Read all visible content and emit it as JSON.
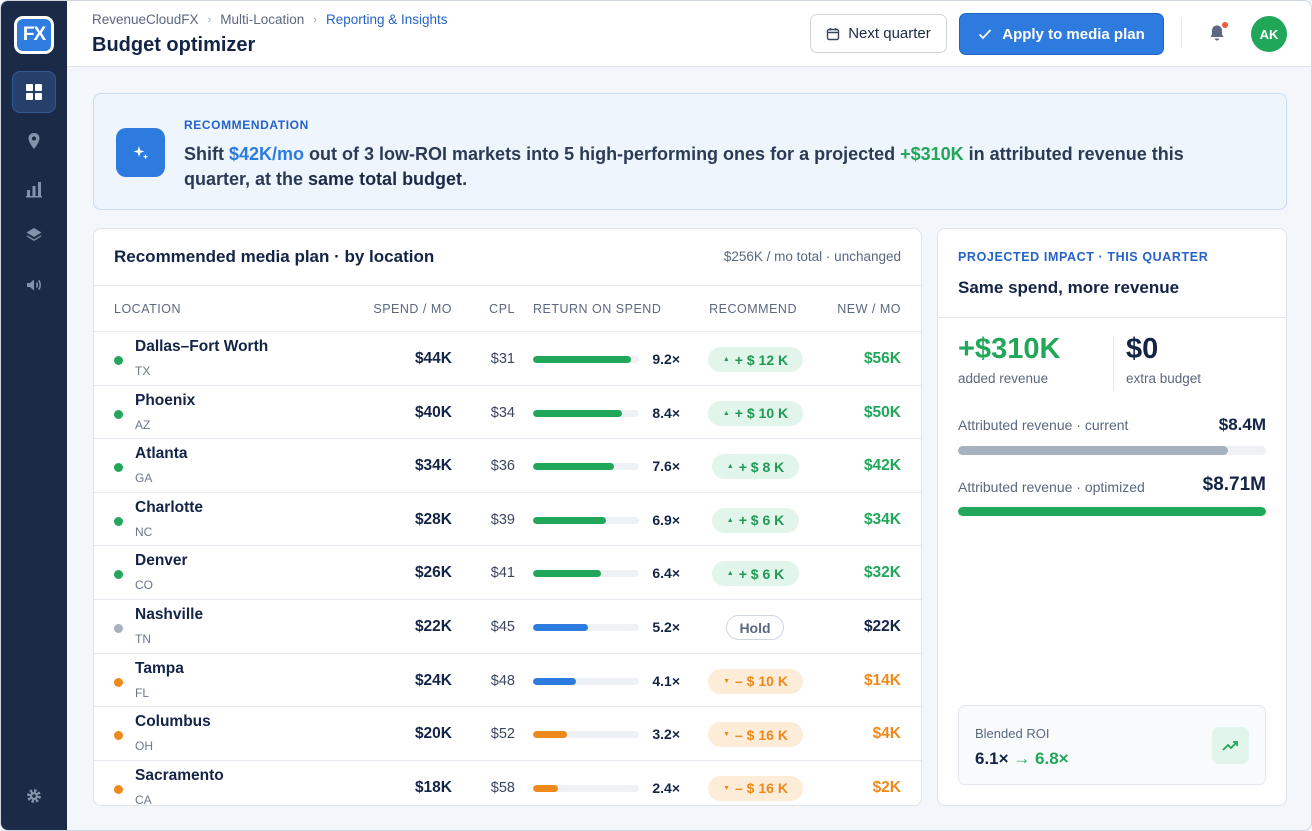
{
  "app": {
    "logo_text": "FX",
    "breadcrumb": [
      "RevenueCloudFX",
      "Multi-Location",
      "Reporting & Insights"
    ],
    "page_title": "Budget optimizer",
    "next_quarter_label": "Next quarter",
    "apply_label": "Apply to media plan",
    "avatar_initials": "AK"
  },
  "sidebar": {
    "items": [
      {
        "icon": "grid-icon",
        "active": true
      },
      {
        "icon": "location-pin-icon",
        "active": false
      },
      {
        "icon": "bar-chart-icon",
        "active": false
      },
      {
        "icon": "layers-icon",
        "active": false
      },
      {
        "icon": "speaker-icon",
        "active": false
      }
    ],
    "bottom_icon": "gear-icon"
  },
  "recommendation": {
    "label": "RECOMMENDATION",
    "p1": "Shift ",
    "amount": "$42K/mo",
    "p2": " out of 3 low-ROI markets into 5 high-performing ones for a projected ",
    "revenue": "+$310K",
    "p3": " in attributed revenue this quarter, at the ",
    "emph": "same total budget",
    "p4": "."
  },
  "plan": {
    "title": "Recommended media plan · by location",
    "note": "$256K / mo total · unchanged",
    "columns": {
      "location": "LOCATION",
      "spend": "SPEND / MO",
      "cpl": "CPL",
      "return": "RETURN ON SPEND",
      "recommend": "RECOMMEND",
      "new": "NEW / MO"
    },
    "rows": [
      {
        "name": "Dallas–Fort Worth",
        "state": "TX",
        "spend": "$44K",
        "cpl": "$31",
        "roi": "9.2×",
        "roi_value": 9.2,
        "rec": "+ $ 12 K",
        "rec_type": "up",
        "new": "$56K"
      },
      {
        "name": "Phoenix",
        "state": "AZ",
        "spend": "$40K",
        "cpl": "$34",
        "roi": "8.4×",
        "roi_value": 8.4,
        "rec": "+ $ 10 K",
        "rec_type": "up",
        "new": "$50K"
      },
      {
        "name": "Atlanta",
        "state": "GA",
        "spend": "$34K",
        "cpl": "$36",
        "roi": "7.6×",
        "roi_value": 7.6,
        "rec": "+ $ 8 K",
        "rec_type": "up",
        "new": "$42K"
      },
      {
        "name": "Charlotte",
        "state": "NC",
        "spend": "$28K",
        "cpl": "$39",
        "roi": "6.9×",
        "roi_value": 6.9,
        "rec": "+ $ 6 K",
        "rec_type": "up",
        "new": "$34K"
      },
      {
        "name": "Denver",
        "state": "CO",
        "spend": "$26K",
        "cpl": "$41",
        "roi": "6.4×",
        "roi_value": 6.4,
        "rec": "+ $ 6 K",
        "rec_type": "up",
        "new": "$32K"
      },
      {
        "name": "Nashville",
        "state": "TN",
        "spend": "$22K",
        "cpl": "$45",
        "roi": "5.2×",
        "roi_value": 5.2,
        "rec": "Hold",
        "rec_type": "hold",
        "new": "$22K"
      },
      {
        "name": "Tampa",
        "state": "FL",
        "spend": "$24K",
        "cpl": "$48",
        "roi": "4.1×",
        "roi_value": 4.1,
        "rec": "– $ 10 K",
        "rec_type": "down",
        "new": "$14K"
      },
      {
        "name": "Columbus",
        "state": "OH",
        "spend": "$20K",
        "cpl": "$52",
        "roi": "3.2×",
        "roi_value": 3.2,
        "rec": "– $ 16 K",
        "rec_type": "down",
        "new": "$4K"
      },
      {
        "name": "Sacramento",
        "state": "CA",
        "spend": "$18K",
        "cpl": "$58",
        "roi": "2.4×",
        "roi_value": 2.4,
        "rec": "– $ 16 K",
        "rec_type": "down",
        "new": "$2K"
      }
    ]
  },
  "impact": {
    "label": "PROJECTED IMPACT · THIS QUARTER",
    "title": "Same spend, more revenue",
    "added_value": "+$310K",
    "added_label": "added revenue",
    "extra_value": "$0",
    "extra_label": "extra budget",
    "current_label": "Attributed revenue · current",
    "current_value": "$8.4M",
    "optimized_label": "Attributed revenue · optimized",
    "optimized_value": "$8.71M",
    "current_fill": 0.875,
    "optimized_fill": 1.0,
    "roi_label": "Blended ROI",
    "roi_from": "6.1×",
    "roi_to": "6.8×"
  },
  "colors": {
    "accent": "#2e7be0",
    "positive": "#21a75a",
    "negative": "#ee8a1c",
    "neutral": "#a8b1bf",
    "sidebar": "#1b2a46"
  }
}
